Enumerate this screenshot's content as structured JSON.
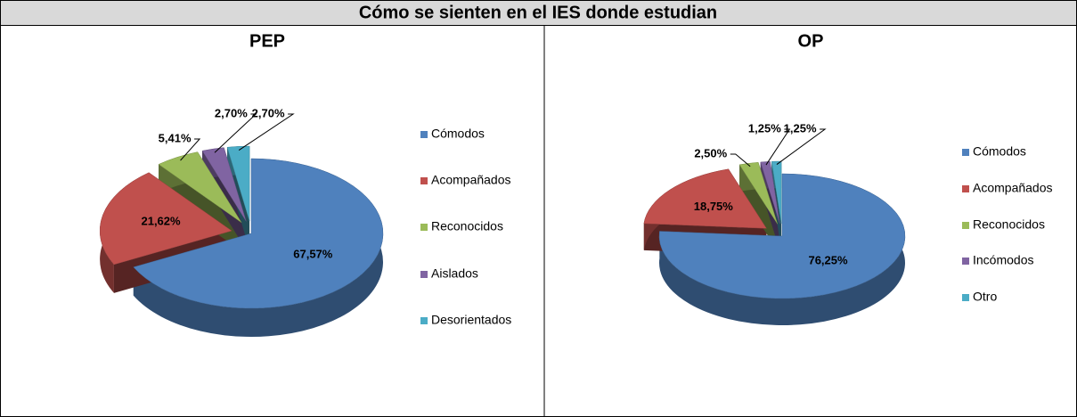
{
  "title": "Cómo se sienten en el IES donde estudian",
  "chart_data": [
    {
      "type": "pie",
      "title": "PEP",
      "categories": [
        "Cómodos",
        "Acompañados",
        "Reconocidos",
        "Aislados",
        "Desorientados"
      ],
      "values": [
        67.57,
        21.62,
        5.41,
        2.7,
        2.7
      ],
      "value_labels": [
        "67,57%",
        "21,62%",
        "5,41%",
        "2,70%",
        "2,70%"
      ],
      "colors": [
        "#4f81bd",
        "#c0504d",
        "#9bbb59",
        "#8064a2",
        "#4bacc6"
      ],
      "legend": "right"
    },
    {
      "type": "pie",
      "title": "OP",
      "categories": [
        "Cómodos",
        "Acompañados",
        "Reconocidos",
        "Incómodos",
        "Otro"
      ],
      "values": [
        76.25,
        18.75,
        2.5,
        1.25,
        1.25
      ],
      "value_labels": [
        "76,25%",
        "18,75%",
        "2,50%",
        "1,25%",
        "1,25%"
      ],
      "colors": [
        "#4f81bd",
        "#c0504d",
        "#9bbb59",
        "#8064a2",
        "#4bacc6"
      ],
      "legend": "right"
    }
  ]
}
